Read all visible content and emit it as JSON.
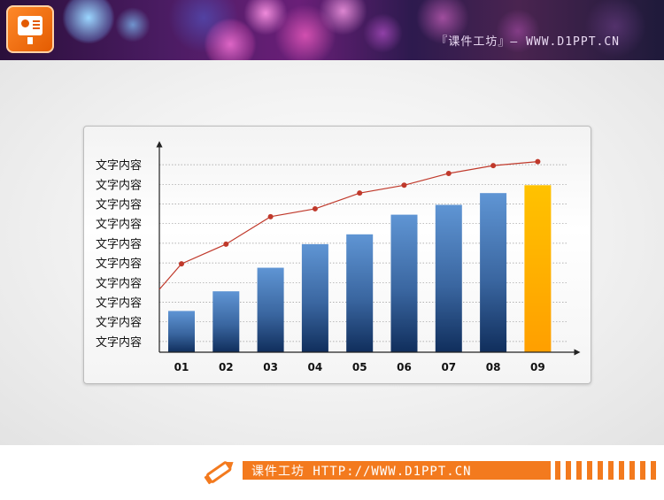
{
  "header": {
    "site_text": "『课件工坊』— WWW.D1PPT.CN"
  },
  "footer": {
    "site_text": "课件工坊 HTTP://WWW.D1PPT.CN"
  },
  "colors": {
    "accent_orange": "#f37a1e",
    "bar_blue": "#5b8cc8",
    "bar_highlight": "#ffb400",
    "line_red": "#c0392b"
  },
  "icons": {
    "logo": "presentation-board-icon",
    "footer": "pencil-icon"
  },
  "chart_data": {
    "type": "bar",
    "categories": [
      "01",
      "02",
      "03",
      "04",
      "05",
      "06",
      "07",
      "08",
      "09"
    ],
    "y_tick_labels": [
      "文字内容",
      "文字内容",
      "文字内容",
      "文字内容",
      "文字内容",
      "文字内容",
      "文字内容",
      "文字内容",
      "文字内容",
      "文字内容"
    ],
    "ylim": [
      0,
      10
    ],
    "series": [
      {
        "type": "bar",
        "values": [
          2.1,
          3.1,
          4.3,
          5.5,
          6.0,
          7.0,
          7.5,
          8.1,
          8.5
        ]
      },
      {
        "type": "line",
        "values": [
          4.5,
          5.5,
          6.9,
          7.3,
          8.1,
          8.5,
          9.1,
          9.5,
          9.7
        ]
      }
    ],
    "highlight_category": "09",
    "grid": true,
    "grid_style": "dotted",
    "legend": "none"
  }
}
